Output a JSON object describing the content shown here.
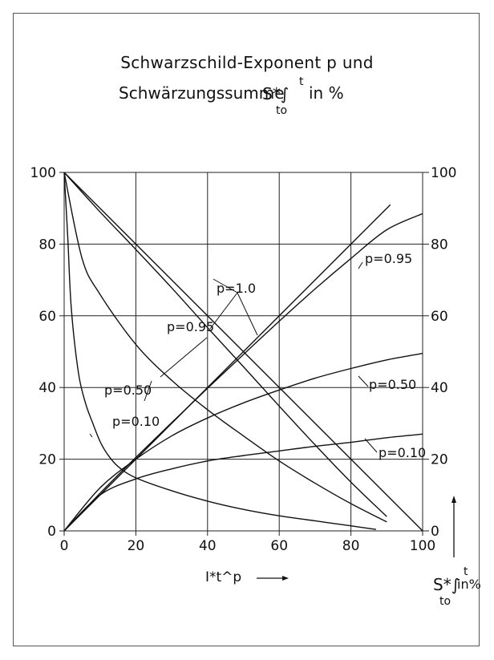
{
  "chart_data": {
    "type": "line",
    "title_line1": "Schwarzschild-Exponent p und",
    "title_line2_text": "Schwärzungssumme",
    "title_line2_suffix": "in %",
    "integral_symbol": "S*∫",
    "integral_upper": "t",
    "integral_lower": "to",
    "xlabel": "I*t^p",
    "ylabel_right": "in%",
    "xlim": [
      0,
      100
    ],
    "ylim": [
      0,
      100
    ],
    "grid": true,
    "x_ticks": [
      "0",
      "20",
      "40",
      "60",
      "80",
      "100"
    ],
    "y_ticks_left": [
      "0",
      "20",
      "40",
      "60",
      "80",
      "100"
    ],
    "y_ticks_right": [
      "0",
      "20",
      "40",
      "60",
      "80",
      "100"
    ],
    "series": [
      {
        "name": "p=1.0",
        "x": [
          0,
          100
        ],
        "y": [
          100,
          0
        ]
      },
      {
        "name": "p=1.0",
        "x": [
          0,
          91
        ],
        "y": [
          0,
          91
        ]
      },
      {
        "name": "p=0.95",
        "x": [
          0,
          10,
          20,
          30,
          40,
          50,
          60,
          70,
          80,
          90
        ],
        "y": [
          100,
          89,
          78.5,
          67.8,
          56.7,
          45.8,
          34.8,
          24,
          13.6,
          4
        ]
      },
      {
        "name": "p=0.95",
        "x": [
          0,
          10,
          20,
          30,
          40,
          50,
          60,
          70,
          80,
          90,
          100
        ],
        "y": [
          0,
          10.5,
          20.5,
          30.2,
          39.8,
          49.2,
          58.5,
          67.5,
          76,
          84,
          88.5
        ]
      },
      {
        "name": "p=0.50",
        "x": [
          0,
          5,
          10,
          20,
          30,
          40,
          50,
          60,
          70,
          80,
          90
        ],
        "y": [
          100,
          76,
          66,
          52,
          42,
          33.8,
          26.5,
          19.5,
          13.3,
          7.6,
          2.5
        ]
      },
      {
        "name": "p=0.50",
        "x": [
          0,
          10,
          20,
          30,
          40,
          50,
          60,
          70,
          80,
          90,
          100
        ],
        "y": [
          0,
          12,
          20,
          26.5,
          31.5,
          35.7,
          39.3,
          42.6,
          45.3,
          47.7,
          49.5
        ]
      },
      {
        "name": "p=0.10",
        "x": [
          0,
          1,
          2,
          4,
          6,
          8,
          10,
          12,
          15,
          20,
          30,
          40,
          50,
          60,
          70,
          80,
          87
        ],
        "y": [
          100,
          82,
          62,
          44,
          35.5,
          30,
          25,
          21.5,
          18,
          14.8,
          11.2,
          8.3,
          6,
          4.2,
          2.8,
          1.4,
          0.4
        ]
      },
      {
        "name": "p=0.10",
        "x": [
          0,
          10,
          20,
          30,
          40,
          50,
          60,
          70,
          80,
          90,
          100
        ],
        "y": [
          0,
          10,
          14.5,
          17.3,
          19.5,
          21,
          22.3,
          23.6,
          24.7,
          26,
          27
        ]
      }
    ],
    "labels": [
      {
        "text": "p=1.0"
      },
      {
        "text": "p=0.95"
      },
      {
        "text": "p=0.50"
      },
      {
        "text": "p=0.10"
      },
      {
        "text": "p=0.95"
      },
      {
        "text": "p=0.50"
      },
      {
        "text": "p=0.10"
      }
    ]
  }
}
